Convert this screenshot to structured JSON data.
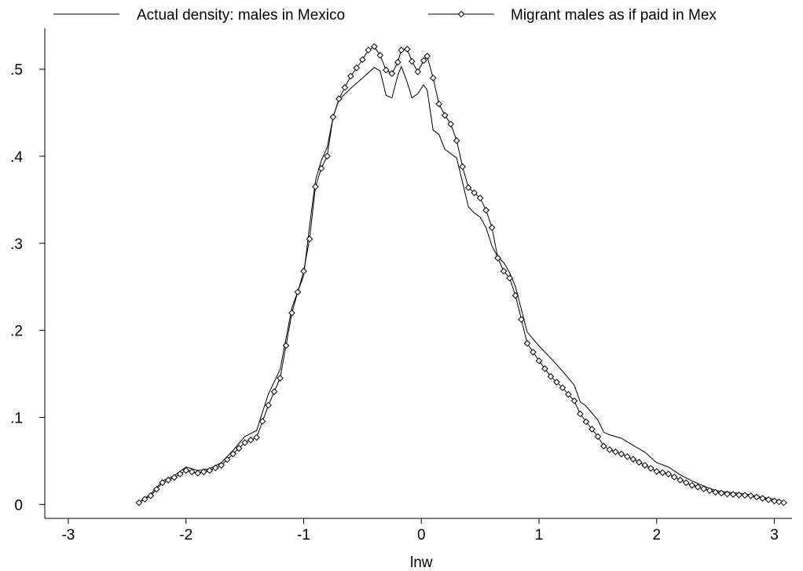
{
  "chart_data": {
    "type": "line",
    "title": "",
    "xlabel": "lnw",
    "ylabel": "",
    "xlim": [
      -3.2,
      3.15
    ],
    "ylim": [
      -0.016,
      0.547
    ],
    "xticks": [
      -3,
      -2,
      -1,
      0,
      1,
      2,
      3
    ],
    "xtick_labels": [
      "-3",
      "-2",
      "-1",
      "0",
      "1",
      "2",
      "3"
    ],
    "yticks": [
      0,
      0.1,
      0.2,
      0.3,
      0.4,
      0.5
    ],
    "ytick_labels": [
      "0",
      ".1",
      ".2",
      ".3",
      ".4",
      ".5"
    ],
    "grid": false,
    "legend_position": "top",
    "series": [
      {
        "name": "Actual density: males in Mexico",
        "marker": "none",
        "color": "#000000",
        "points": [
          [
            -2.4,
            0.002
          ],
          [
            -2.3,
            0.012
          ],
          [
            -2.2,
            0.027
          ],
          [
            -2.1,
            0.033
          ],
          [
            -2.0,
            0.043
          ],
          [
            -1.9,
            0.039
          ],
          [
            -1.8,
            0.041
          ],
          [
            -1.7,
            0.048
          ],
          [
            -1.6,
            0.062
          ],
          [
            -1.5,
            0.078
          ],
          [
            -1.4,
            0.085
          ],
          [
            -1.3,
            0.127
          ],
          [
            -1.2,
            0.155
          ],
          [
            -1.1,
            0.226
          ],
          [
            -1.0,
            0.263
          ],
          [
            -0.95,
            0.32
          ],
          [
            -0.9,
            0.372
          ],
          [
            -0.85,
            0.395
          ],
          [
            -0.8,
            0.41
          ],
          [
            -0.75,
            0.445
          ],
          [
            -0.7,
            0.465
          ],
          [
            -0.6,
            0.478
          ],
          [
            -0.5,
            0.49
          ],
          [
            -0.4,
            0.502
          ],
          [
            -0.35,
            0.498
          ],
          [
            -0.3,
            0.47
          ],
          [
            -0.25,
            0.467
          ],
          [
            -0.2,
            0.493
          ],
          [
            -0.17,
            0.503
          ],
          [
            -0.12,
            0.485
          ],
          [
            -0.08,
            0.467
          ],
          [
            -0.03,
            0.472
          ],
          [
            0.02,
            0.482
          ],
          [
            0.05,
            0.476
          ],
          [
            0.1,
            0.43
          ],
          [
            0.15,
            0.425
          ],
          [
            0.2,
            0.408
          ],
          [
            0.25,
            0.403
          ],
          [
            0.3,
            0.398
          ],
          [
            0.35,
            0.37
          ],
          [
            0.4,
            0.342
          ],
          [
            0.45,
            0.335
          ],
          [
            0.5,
            0.33
          ],
          [
            0.55,
            0.318
          ],
          [
            0.6,
            0.297
          ],
          [
            0.65,
            0.284
          ],
          [
            0.7,
            0.278
          ],
          [
            0.75,
            0.266
          ],
          [
            0.8,
            0.25
          ],
          [
            0.9,
            0.198
          ],
          [
            1.0,
            0.182
          ],
          [
            1.1,
            0.168
          ],
          [
            1.2,
            0.153
          ],
          [
            1.3,
            0.137
          ],
          [
            1.35,
            0.118
          ],
          [
            1.4,
            0.113
          ],
          [
            1.5,
            0.097
          ],
          [
            1.55,
            0.083
          ],
          [
            1.6,
            0.08
          ],
          [
            1.7,
            0.076
          ],
          [
            1.8,
            0.068
          ],
          [
            1.9,
            0.06
          ],
          [
            2.0,
            0.048
          ],
          [
            2.1,
            0.043
          ],
          [
            2.2,
            0.034
          ],
          [
            2.3,
            0.027
          ],
          [
            2.4,
            0.021
          ],
          [
            2.5,
            0.016
          ],
          [
            2.6,
            0.014
          ],
          [
            2.7,
            0.013
          ],
          [
            2.8,
            0.011
          ],
          [
            2.9,
            0.008
          ],
          [
            3.0,
            0.006
          ],
          [
            3.08,
            0.003
          ]
        ]
      },
      {
        "name": "Migrant males as if paid in Mex",
        "marker": "diamond",
        "color": "#000000",
        "points": [
          [
            -2.4,
            0.002
          ],
          [
            -2.3,
            0.01
          ],
          [
            -2.2,
            0.025
          ],
          [
            -2.1,
            0.031
          ],
          [
            -2.0,
            0.039
          ],
          [
            -1.9,
            0.036
          ],
          [
            -1.8,
            0.039
          ],
          [
            -1.7,
            0.045
          ],
          [
            -1.6,
            0.058
          ],
          [
            -1.5,
            0.071
          ],
          [
            -1.4,
            0.077
          ],
          [
            -1.3,
            0.114
          ],
          [
            -1.2,
            0.145
          ],
          [
            -1.1,
            0.22
          ],
          [
            -1.0,
            0.268
          ],
          [
            -0.95,
            0.305
          ],
          [
            -0.9,
            0.365
          ],
          [
            -0.85,
            0.386
          ],
          [
            -0.8,
            0.4
          ],
          [
            -0.75,
            0.445
          ],
          [
            -0.7,
            0.466
          ],
          [
            -0.6,
            0.492
          ],
          [
            -0.5,
            0.511
          ],
          [
            -0.45,
            0.522
          ],
          [
            -0.4,
            0.526
          ],
          [
            -0.35,
            0.516
          ],
          [
            -0.3,
            0.499
          ],
          [
            -0.25,
            0.495
          ],
          [
            -0.2,
            0.508
          ],
          [
            -0.17,
            0.522
          ],
          [
            -0.12,
            0.523
          ],
          [
            -0.08,
            0.509
          ],
          [
            -0.03,
            0.497
          ],
          [
            0.02,
            0.51
          ],
          [
            0.05,
            0.515
          ],
          [
            0.1,
            0.49
          ],
          [
            0.15,
            0.46
          ],
          [
            0.2,
            0.447
          ],
          [
            0.25,
            0.437
          ],
          [
            0.3,
            0.418
          ],
          [
            0.35,
            0.388
          ],
          [
            0.4,
            0.364
          ],
          [
            0.45,
            0.358
          ],
          [
            0.5,
            0.352
          ],
          [
            0.55,
            0.338
          ],
          [
            0.6,
            0.318
          ],
          [
            0.65,
            0.283
          ],
          [
            0.7,
            0.268
          ],
          [
            0.75,
            0.26
          ],
          [
            0.8,
            0.24
          ],
          [
            0.9,
            0.185
          ],
          [
            1.0,
            0.165
          ],
          [
            1.1,
            0.147
          ],
          [
            1.2,
            0.134
          ],
          [
            1.3,
            0.119
          ],
          [
            1.35,
            0.104
          ],
          [
            1.4,
            0.095
          ],
          [
            1.5,
            0.078
          ],
          [
            1.55,
            0.067
          ],
          [
            1.6,
            0.063
          ],
          [
            1.7,
            0.058
          ],
          [
            1.8,
            0.052
          ],
          [
            1.9,
            0.045
          ],
          [
            2.0,
            0.038
          ],
          [
            2.1,
            0.035
          ],
          [
            2.2,
            0.028
          ],
          [
            2.3,
            0.022
          ],
          [
            2.4,
            0.018
          ],
          [
            2.5,
            0.014
          ],
          [
            2.6,
            0.012
          ],
          [
            2.7,
            0.011
          ],
          [
            2.8,
            0.01
          ],
          [
            2.9,
            0.007
          ],
          [
            3.0,
            0.004
          ],
          [
            3.08,
            0.002
          ]
        ]
      }
    ]
  }
}
